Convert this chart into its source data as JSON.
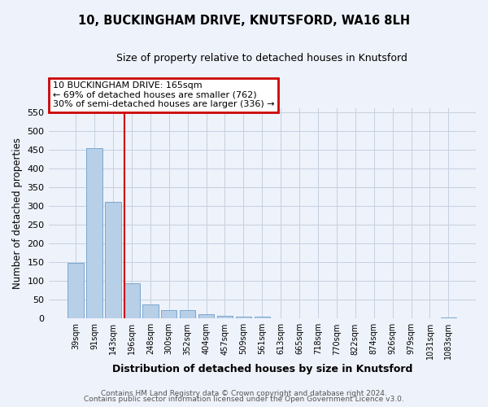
{
  "title": "10, BUCKINGHAM DRIVE, KNUTSFORD, WA16 8LH",
  "subtitle": "Size of property relative to detached houses in Knutsford",
  "xlabel": "Distribution of detached houses by size in Knutsford",
  "ylabel": "Number of detached properties",
  "bar_labels": [
    "39sqm",
    "91sqm",
    "143sqm",
    "196sqm",
    "248sqm",
    "300sqm",
    "352sqm",
    "404sqm",
    "457sqm",
    "509sqm",
    "561sqm",
    "613sqm",
    "665sqm",
    "718sqm",
    "770sqm",
    "822sqm",
    "874sqm",
    "926sqm",
    "979sqm",
    "1031sqm",
    "1083sqm"
  ],
  "bar_values": [
    148,
    454,
    311,
    93,
    38,
    22,
    22,
    12,
    7,
    5,
    5,
    1,
    1,
    0,
    0,
    0,
    0,
    0,
    0,
    0,
    2
  ],
  "bar_color": "#b8cfe8",
  "bar_edge_color": "#7aa8d0",
  "ylim": [
    0,
    560
  ],
  "yticks": [
    0,
    50,
    100,
    150,
    200,
    250,
    300,
    350,
    400,
    450,
    500,
    550
  ],
  "vline_x_index": 2.62,
  "vline_color": "#cc0000",
  "annotation_title": "10 BUCKINGHAM DRIVE: 165sqm",
  "annotation_line1": "← 69% of detached houses are smaller (762)",
  "annotation_line2": "30% of semi-detached houses are larger (336) →",
  "annotation_box_color": "#cc0000",
  "footer_line1": "Contains HM Land Registry data © Crown copyright and database right 2024.",
  "footer_line2": "Contains public sector information licensed under the Open Government Licence v3.0.",
  "background_color": "#eef2fa",
  "grid_color": "#c5d0e0"
}
